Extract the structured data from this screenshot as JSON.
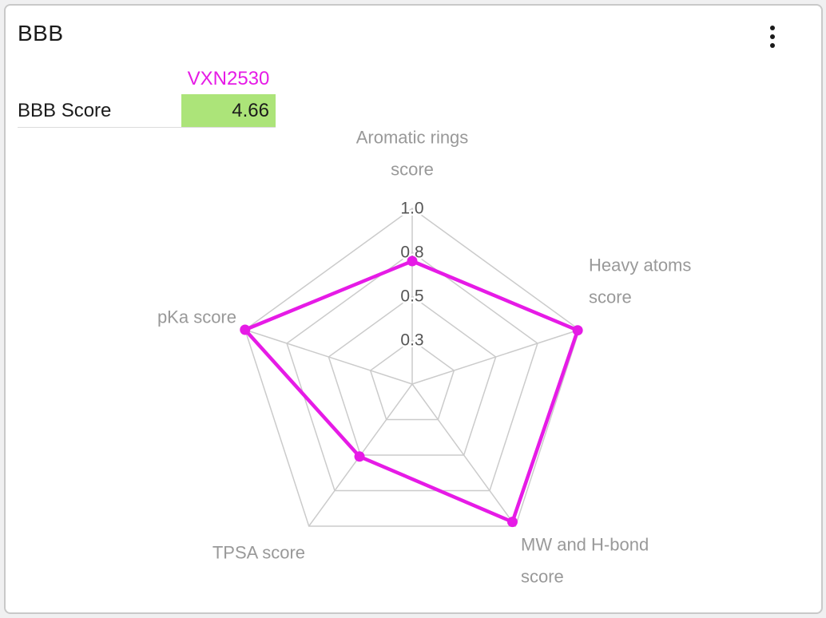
{
  "card": {
    "title": "BBB",
    "more_options_icon": "vertical-ellipsis"
  },
  "score_table": {
    "column_header": "VXN2530",
    "header_color": "#E61BE6",
    "row_label": "BBB Score",
    "row_value": "4.66",
    "value_bg": "#ACE479"
  },
  "chart_data": {
    "type": "radar",
    "grid_shape": "pentagon",
    "categories": [
      "Aromatic rings score",
      "Heavy atoms score",
      "MW and H-bond score",
      "TPSA score",
      "pKa score"
    ],
    "category_label_lines": [
      [
        "Aromatic rings",
        "score"
      ],
      [
        "Heavy atoms",
        "score"
      ],
      [
        "MW and H-bond",
        "score"
      ],
      [
        "TPSA score"
      ],
      [
        "pKa score"
      ]
    ],
    "series": [
      {
        "name": "VXN2530",
        "color": "#E61BE6",
        "values": [
          0.7,
          0.99,
          0.97,
          0.51,
          1.0
        ]
      }
    ],
    "range": [
      0,
      1.0
    ],
    "radial_ticks": [
      {
        "value": 0.25,
        "label": "0.3"
      },
      {
        "value": 0.5,
        "label": "0.5"
      },
      {
        "value": 0.75,
        "label": "0.8"
      },
      {
        "value": 1.0,
        "label": "1.0"
      }
    ],
    "grid_color": "#CBCBCB",
    "axis_label_color": "#999999",
    "tick_label_color": "#555555",
    "legend_position": "none"
  }
}
